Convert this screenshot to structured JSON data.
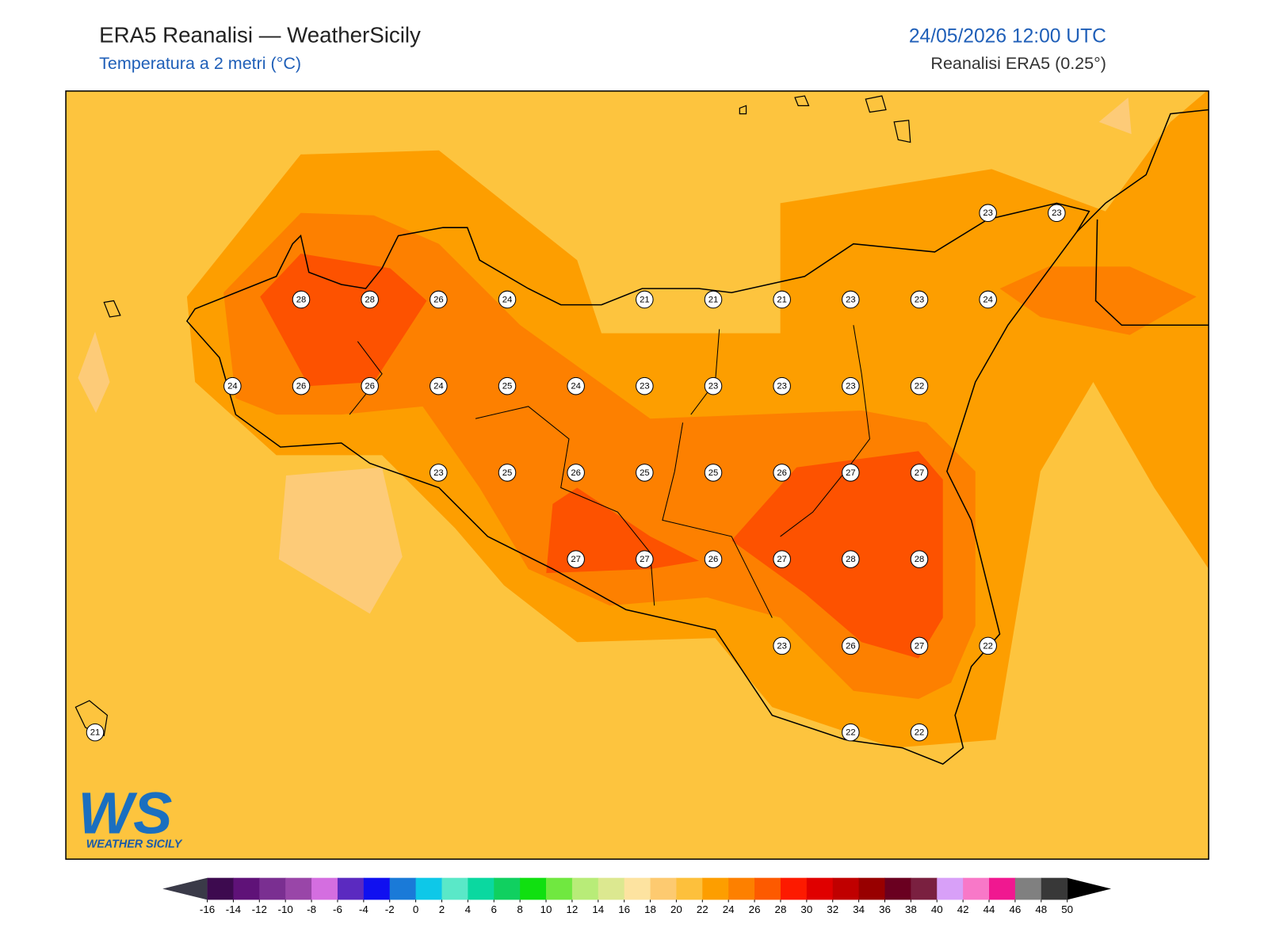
{
  "header": {
    "title": "ERA5 Reanalisi — WeatherSicily",
    "subtitle": "Temperatura a 2 metri (°C)",
    "datetime": "24/05/2026 12:00 UTC",
    "source": "Reanalisi ERA5 (0.25°)"
  },
  "logo": {
    "mark": "WS",
    "text": "WEATHER SICILY"
  },
  "grid_values": [
    [
      null,
      null,
      null,
      null,
      null,
      null,
      null,
      null,
      null,
      null,
      null,
      null,
      null,
      23,
      23
    ],
    [
      null,
      null,
      null,
      28,
      28,
      26,
      24,
      null,
      21,
      21,
      21,
      23,
      23,
      24,
      null
    ],
    [
      null,
      null,
      24,
      26,
      26,
      24,
      25,
      24,
      23,
      23,
      23,
      23,
      22,
      null,
      null
    ],
    [
      null,
      null,
      null,
      null,
      null,
      23,
      25,
      26,
      25,
      25,
      26,
      27,
      27,
      null,
      null
    ],
    [
      null,
      null,
      null,
      null,
      null,
      null,
      null,
      27,
      27,
      26,
      27,
      28,
      28,
      null,
      null
    ],
    [
      null,
      null,
      null,
      null,
      null,
      null,
      null,
      null,
      null,
      null,
      23,
      26,
      27,
      22,
      null
    ],
    [
      21,
      null,
      null,
      null,
      null,
      null,
      null,
      null,
      null,
      null,
      null,
      22,
      22,
      null,
      null
    ]
  ],
  "colorbar": {
    "ticks": [
      -16,
      -14,
      -12,
      -10,
      -8,
      -6,
      -4,
      -2,
      0,
      2,
      4,
      6,
      8,
      10,
      12,
      14,
      16,
      18,
      20,
      22,
      24,
      26,
      28,
      30,
      32,
      34,
      36,
      38,
      40,
      42,
      44,
      46,
      48,
      50
    ],
    "colors": [
      "#3d0a4f",
      "#5f1278",
      "#7a2f91",
      "#9946a8",
      "#d46ee0",
      "#5b2ac0",
      "#1010f0",
      "#1a7ad8",
      "#0ec8e8",
      "#5ae8c8",
      "#0ad8a0",
      "#10d060",
      "#10e010",
      "#70e840",
      "#b8ec78",
      "#dce890",
      "#fde3a0",
      "#fdca70",
      "#fdc03c",
      "#fd9e00",
      "#fd8000",
      "#fd5a00",
      "#fd1a00",
      "#e00000",
      "#c00000",
      "#980000",
      "#6a0020",
      "#7a2040",
      "#d8a0f8",
      "#f878c8",
      "#f01890",
      "#808080",
      "#383838"
    ],
    "under_color": "#3a3a48",
    "over_color": "#000000"
  }
}
